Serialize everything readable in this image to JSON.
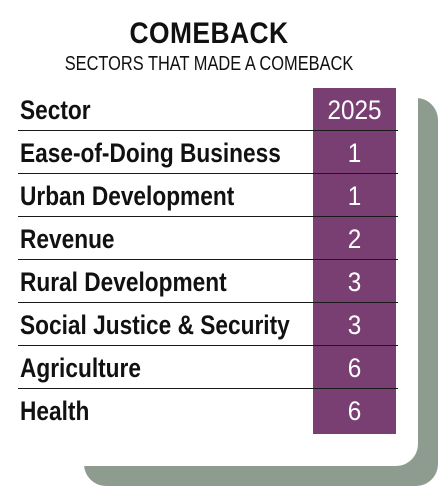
{
  "title": "COMEBACK",
  "subtitle": "SECTORS THAT MADE A COMEBACK",
  "colors": {
    "accent": "#7a3f72",
    "shadow": "#8e9c8f"
  },
  "chart_data": {
    "type": "table",
    "title": "COMEBACK",
    "subtitle": "SECTORS THAT MADE A COMEBACK",
    "columns": [
      "Sector",
      "2025"
    ],
    "rows": [
      {
        "sector": "Ease-of-Doing Business",
        "value": "1"
      },
      {
        "sector": "Urban Development",
        "value": "1"
      },
      {
        "sector": "Revenue",
        "value": "2"
      },
      {
        "sector": "Rural Development",
        "value": "3"
      },
      {
        "sector": "Social Justice & Security",
        "value": "3"
      },
      {
        "sector": "Agriculture",
        "value": "6"
      },
      {
        "sector": "Health",
        "value": "6"
      }
    ]
  }
}
